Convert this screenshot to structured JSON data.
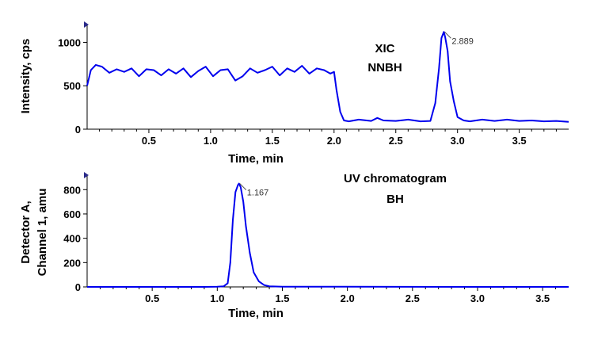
{
  "chart_data": [
    {
      "type": "line",
      "xlabel": "Time, min",
      "ylabel": "Intensity, cps",
      "annotation_lines": [
        "XIC",
        "NNBH"
      ],
      "xlim": [
        0,
        3.9
      ],
      "ylim": [
        0,
        1150
      ],
      "x_ticks": [
        0.5,
        1.0,
        1.5,
        2.0,
        2.5,
        3.0,
        3.5
      ],
      "y_ticks": [
        0,
        500,
        1000
      ],
      "peak_label": {
        "x": 2.889,
        "y": 1120,
        "text": "2.889"
      },
      "series": [
        {
          "color": "#0000ee",
          "x": [
            0,
            0.03,
            0.07,
            0.12,
            0.18,
            0.24,
            0.3,
            0.36,
            0.42,
            0.48,
            0.54,
            0.6,
            0.66,
            0.72,
            0.78,
            0.84,
            0.9,
            0.96,
            1.02,
            1.08,
            1.14,
            1.2,
            1.26,
            1.32,
            1.38,
            1.44,
            1.5,
            1.56,
            1.62,
            1.68,
            1.74,
            1.8,
            1.86,
            1.92,
            1.97,
            2.0,
            2.02,
            2.05,
            2.08,
            2.12,
            2.2,
            2.3,
            2.35,
            2.4,
            2.5,
            2.6,
            2.7,
            2.78,
            2.82,
            2.85,
            2.87,
            2.889,
            2.9,
            2.92,
            2.94,
            2.97,
            3.0,
            3.05,
            3.1,
            3.2,
            3.3,
            3.4,
            3.5,
            3.6,
            3.7,
            3.8,
            3.9
          ],
          "y": [
            500,
            680,
            740,
            720,
            650,
            690,
            660,
            700,
            610,
            690,
            680,
            620,
            690,
            640,
            700,
            600,
            670,
            720,
            610,
            680,
            690,
            560,
            610,
            700,
            650,
            680,
            720,
            620,
            700,
            660,
            730,
            640,
            700,
            680,
            640,
            660,
            450,
            200,
            100,
            90,
            110,
            95,
            130,
            100,
            95,
            110,
            90,
            95,
            300,
            700,
            1050,
            1120,
            1060,
            900,
            550,
            320,
            140,
            100,
            90,
            110,
            95,
            110,
            95,
            100,
            90,
            95,
            85
          ]
        }
      ]
    },
    {
      "type": "line",
      "xlabel": "Time, min",
      "ylabel_lines": [
        "Detector A,",
        "Channel 1, amu"
      ],
      "annotation_lines": [
        "UV chromatogram",
        "BH"
      ],
      "xlim": [
        0,
        3.7
      ],
      "ylim": [
        0,
        880
      ],
      "x_ticks": [
        0.5,
        1.0,
        1.5,
        2.0,
        2.5,
        3.0,
        3.5
      ],
      "y_ticks": [
        0,
        200,
        400,
        600,
        800
      ],
      "peak_label": {
        "x": 1.167,
        "y": 850,
        "text": "1.167"
      },
      "series": [
        {
          "color": "#0000ee",
          "x": [
            0,
            0.9,
            1.0,
            1.05,
            1.08,
            1.1,
            1.12,
            1.14,
            1.16,
            1.167,
            1.18,
            1.2,
            1.22,
            1.25,
            1.28,
            1.32,
            1.36,
            1.4,
            1.5,
            2.0,
            3.0,
            3.7
          ],
          "y": [
            0,
            0,
            2,
            5,
            30,
            200,
            550,
            780,
            840,
            850,
            820,
            700,
            500,
            280,
            120,
            45,
            15,
            5,
            2,
            1,
            0,
            0
          ]
        }
      ]
    }
  ]
}
